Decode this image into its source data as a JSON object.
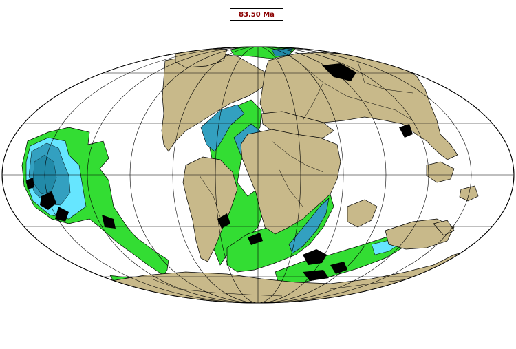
{
  "map": {
    "age_label": "83.50 Ma",
    "colors": {
      "background": "#ffffff",
      "continent": "#c8b98a",
      "continent_outline": "#000000",
      "ridge_crust": "#33dd33",
      "old_crust_teal": "#33a0c0",
      "old_crust_cyan": "#66e6ff",
      "dark_teal": "#228aa8",
      "black_features": "#000000",
      "graticule": "#000000"
    }
  }
}
